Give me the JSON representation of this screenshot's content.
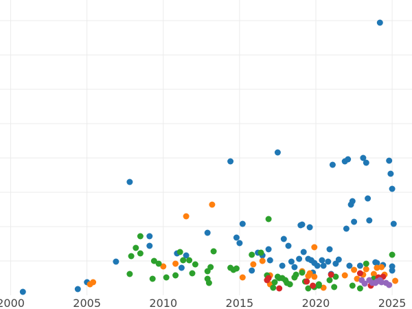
{
  "chart_data": {
    "type": "scatter",
    "title": "",
    "xlabel": "",
    "ylabel": "",
    "xlim": [
      1999.3,
      2026.3
    ],
    "ylim": [
      0,
      430
    ],
    "xticks": [
      2000,
      2005,
      2010,
      2015,
      2020,
      2025
    ],
    "xtick_labels": [
      "2000",
      "2005",
      "2010",
      "2015",
      "2020",
      "2025"
    ],
    "grid": true,
    "legend": "none",
    "series": [
      {
        "color": "#1f77b4",
        "points": [
          [
            2000.8,
            5
          ],
          [
            2004.4,
            9
          ],
          [
            2005.0,
            19
          ],
          [
            2006.9,
            49
          ],
          [
            2007.8,
            165
          ],
          [
            2009.1,
            86
          ],
          [
            2009.1,
            72
          ],
          [
            2010.9,
            61
          ],
          [
            2011.2,
            40
          ],
          [
            2011.5,
            58
          ],
          [
            2012.9,
            91
          ],
          [
            2014.4,
            195
          ],
          [
            2014.8,
            84
          ],
          [
            2015.0,
            76
          ],
          [
            2015.2,
            104
          ],
          [
            2015.8,
            36
          ],
          [
            2016.5,
            58
          ],
          [
            2016.9,
            67
          ],
          [
            2017.0,
            51
          ],
          [
            2017.5,
            208
          ],
          [
            2017.9,
            82
          ],
          [
            2017.8,
            43
          ],
          [
            2018.2,
            72
          ],
          [
            2018.4,
            49
          ],
          [
            2018.6,
            41
          ],
          [
            2018.9,
            53
          ],
          [
            2019.0,
            102
          ],
          [
            2019.1,
            103
          ],
          [
            2019.2,
            63
          ],
          [
            2019.5,
            53
          ],
          [
            2019.7,
            51
          ],
          [
            2019.8,
            33
          ],
          [
            2019.9,
            47
          ],
          [
            2020.1,
            43
          ],
          [
            2020.4,
            51
          ],
          [
            2020.5,
            43
          ],
          [
            2020.8,
            49
          ],
          [
            2020.9,
            67
          ],
          [
            2021.1,
            190
          ],
          [
            2021.3,
            46
          ],
          [
            2021.5,
            52
          ],
          [
            2021.9,
            195
          ],
          [
            2022.1,
            198
          ],
          [
            2022.0,
            97
          ],
          [
            2022.3,
            132
          ],
          [
            2022.4,
            137
          ],
          [
            2022.5,
            107
          ],
          [
            2022.9,
            43
          ],
          [
            2023.1,
            200
          ],
          [
            2023.3,
            193
          ],
          [
            2023.4,
            141
          ],
          [
            2023.5,
            109
          ],
          [
            2023.9,
            48
          ],
          [
            2024.2,
            397
          ],
          [
            2024.4,
            44
          ],
          [
            2024.8,
            196
          ],
          [
            2024.9,
            177
          ],
          [
            2025.0,
            155
          ],
          [
            2025.0,
            36
          ],
          [
            2025.0,
            42
          ],
          [
            2025.1,
            104
          ],
          [
            2021.0,
            31
          ],
          [
            2019.6,
            99
          ],
          [
            2016.2,
            62
          ],
          [
            2022.2,
            43
          ],
          [
            2024.0,
            47
          ]
        ]
      },
      {
        "color": "#ff7f0e",
        "points": [
          [
            2005.2,
            16
          ],
          [
            2005.4,
            19
          ],
          [
            2010.0,
            42
          ],
          [
            2011.5,
            115
          ],
          [
            2013.2,
            132
          ],
          [
            2015.2,
            26
          ],
          [
            2015.9,
            45
          ],
          [
            2016.5,
            50
          ],
          [
            2017.0,
            29
          ],
          [
            2017.0,
            16
          ],
          [
            2018.6,
            26
          ],
          [
            2019.1,
            35
          ],
          [
            2019.5,
            28
          ],
          [
            2019.9,
            27
          ],
          [
            2019.9,
            70
          ],
          [
            2020.5,
            11
          ],
          [
            2021.9,
            29
          ],
          [
            2022.5,
            37
          ],
          [
            2022.7,
            24
          ],
          [
            2023.1,
            30
          ],
          [
            2023.8,
            31
          ],
          [
            2024.0,
            40
          ],
          [
            2024.3,
            41
          ],
          [
            2024.5,
            30
          ],
          [
            2025.2,
            21
          ],
          [
            2019.6,
            32
          ],
          [
            2010.8,
            46
          ],
          [
            2023.3,
            38
          ]
        ]
      },
      {
        "color": "#2ca02c",
        "points": [
          [
            2007.8,
            31
          ],
          [
            2007.9,
            57
          ],
          [
            2008.2,
            69
          ],
          [
            2008.5,
            61
          ],
          [
            2008.5,
            86
          ],
          [
            2009.3,
            24
          ],
          [
            2009.4,
            50
          ],
          [
            2009.7,
            46
          ],
          [
            2010.2,
            26
          ],
          [
            2010.8,
            29
          ],
          [
            2011.1,
            63
          ],
          [
            2011.3,
            51
          ],
          [
            2011.7,
            51
          ],
          [
            2011.9,
            32
          ],
          [
            2012.1,
            45
          ],
          [
            2012.9,
            24
          ],
          [
            2012.9,
            35
          ],
          [
            2013.0,
            18
          ],
          [
            2013.1,
            41
          ],
          [
            2013.3,
            64
          ],
          [
            2014.4,
            40
          ],
          [
            2014.6,
            37
          ],
          [
            2014.8,
            39
          ],
          [
            2015.8,
            59
          ],
          [
            2016.4,
            62
          ],
          [
            2016.8,
            29
          ],
          [
            2016.9,
            111
          ],
          [
            2017.2,
            11
          ],
          [
            2017.3,
            19
          ],
          [
            2017.6,
            25
          ],
          [
            2017.8,
            25
          ],
          [
            2018.0,
            22
          ],
          [
            2018.3,
            16
          ],
          [
            2018.6,
            26
          ],
          [
            2018.7,
            30
          ],
          [
            2019.1,
            33
          ],
          [
            2019.3,
            20
          ],
          [
            2019.5,
            10
          ],
          [
            2019.9,
            12
          ],
          [
            2020.2,
            14
          ],
          [
            2020.2,
            16
          ],
          [
            2020.9,
            22
          ],
          [
            2021.2,
            12
          ],
          [
            2021.3,
            27
          ],
          [
            2022.4,
            14
          ],
          [
            2022.9,
            10
          ],
          [
            2023.3,
            46
          ],
          [
            2023.8,
            24
          ],
          [
            2025.0,
            59
          ],
          [
            2017.5,
            27
          ],
          [
            2018.1,
            18
          ]
        ]
      },
      {
        "color": "#d62728",
        "points": [
          [
            2016.8,
            22
          ],
          [
            2017.6,
            10
          ],
          [
            2019.4,
            20
          ],
          [
            2019.8,
            14
          ],
          [
            2021.0,
            30
          ],
          [
            2022.9,
            32
          ],
          [
            2023.6,
            14
          ],
          [
            2024.1,
            26
          ],
          [
            2024.4,
            27
          ],
          [
            2016.9,
            25
          ]
        ]
      },
      {
        "color": "#9467bd",
        "points": [
          [
            2023.0,
            22
          ],
          [
            2023.5,
            22
          ],
          [
            2023.7,
            18
          ],
          [
            2023.9,
            18
          ],
          [
            2024.0,
            20
          ],
          [
            2024.3,
            19
          ],
          [
            2024.6,
            18
          ],
          [
            2024.8,
            15
          ],
          [
            2023.2,
            17
          ],
          [
            2024.2,
            22
          ]
        ]
      }
    ]
  }
}
